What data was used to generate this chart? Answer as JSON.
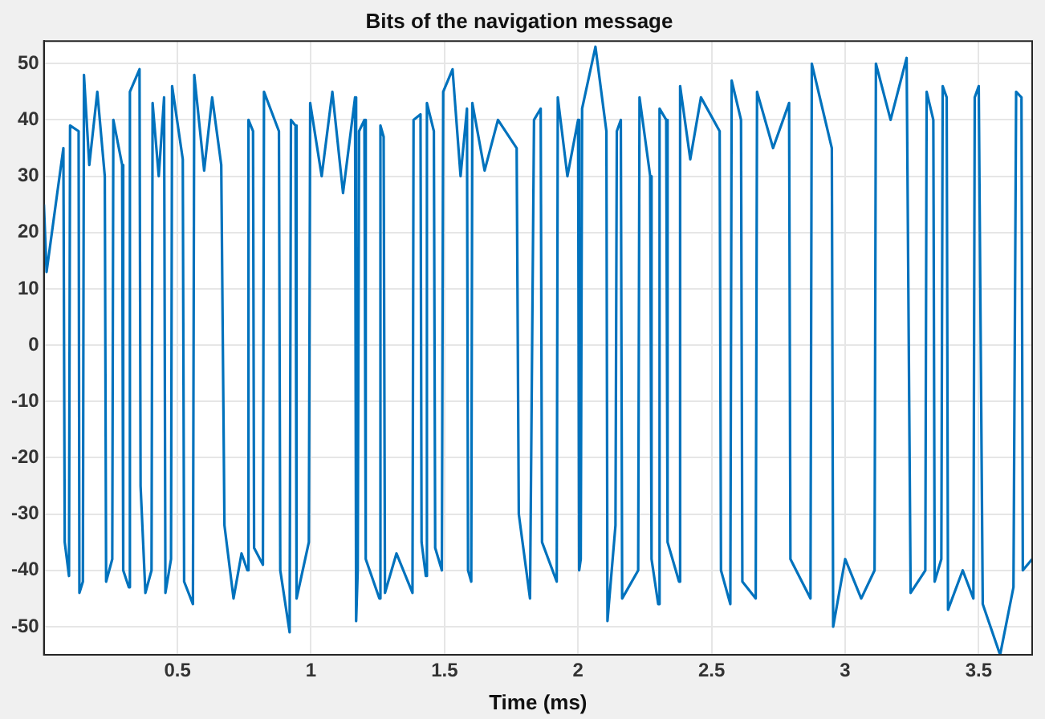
{
  "chart_data": {
    "type": "line",
    "title": "Bits of the navigation message",
    "xlabel": "Time (ms)",
    "grid": true,
    "legend": false,
    "marker": "none",
    "line_style": "solid",
    "xlim": [
      0,
      3.7
    ],
    "ylim": [
      -55,
      54
    ],
    "xticks": [
      0.5,
      1,
      1.5,
      2,
      2.5,
      3,
      3.5
    ],
    "yticks": [
      -50,
      -40,
      -30,
      -20,
      -10,
      0,
      10,
      20,
      30,
      40,
      50
    ],
    "series": [
      {
        "color": "#0072bd",
        "x": [
          0,
          0.01,
          0.03,
          0.05,
          0.073,
          0.078,
          0.094,
          0.098,
          0.13,
          0.133,
          0.146,
          0.15,
          0.17,
          0.2,
          0.228,
          0.233,
          0.256,
          0.26,
          0.293,
          0.297,
          0.318,
          0.322,
          0.358,
          0.362,
          0.38,
          0.403,
          0.407,
          0.43,
          0.45,
          0.455,
          0.476,
          0.48,
          0.52,
          0.525,
          0.558,
          0.563,
          0.6,
          0.63,
          0.664,
          0.676,
          0.71,
          0.74,
          0.762,
          0.766,
          0.783,
          0.787,
          0.82,
          0.824,
          0.88,
          0.885,
          0.92,
          0.925,
          0.942,
          0.946,
          0.992,
          0.997,
          1.04,
          1.08,
          1.12,
          1.165,
          1.169,
          1.175,
          1.18,
          1.2,
          1.205,
          1.256,
          1.26,
          1.272,
          1.277,
          1.32,
          1.38,
          1.384,
          1.41,
          1.414,
          1.43,
          1.434,
          1.46,
          1.465,
          1.49,
          1.495,
          1.53,
          1.56,
          1.584,
          1.588,
          1.6,
          1.604,
          1.65,
          1.7,
          1.77,
          1.778,
          1.82,
          1.835,
          1.86,
          1.865,
          1.92,
          1.924,
          1.96,
          2.0,
          2.004,
          2.01,
          2.015,
          2.065,
          2.106,
          2.11,
          2.14,
          2.145,
          2.16,
          2.165,
          2.225,
          2.23,
          2.27,
          2.275,
          2.3,
          2.305,
          2.33,
          2.335,
          2.378,
          2.382,
          2.42,
          2.46,
          2.53,
          2.535,
          2.57,
          2.575,
          2.61,
          2.615,
          2.665,
          2.67,
          2.73,
          2.79,
          2.795,
          2.87,
          2.875,
          2.95,
          2.955,
          3.0,
          3.06,
          3.11,
          3.115,
          3.17,
          3.23,
          3.245,
          3.3,
          3.305,
          3.33,
          3.335,
          3.36,
          3.365,
          3.38,
          3.385,
          3.44,
          3.48,
          3.485,
          3.5,
          3.515,
          3.58,
          3.63,
          3.64,
          3.66,
          3.665,
          3.7
        ],
        "values": [
          25,
          13,
          20,
          27,
          35,
          -35,
          -41,
          39,
          38,
          -44,
          -42,
          48,
          32,
          45,
          30,
          -42,
          -38,
          40,
          32,
          -40,
          -43,
          45,
          49,
          -25,
          -44,
          -40,
          43,
          30,
          44,
          -44,
          -38,
          46,
          33,
          -42,
          -46,
          48,
          31,
          44,
          32,
          -32,
          -45,
          -37,
          -40,
          40,
          38,
          -36,
          -39,
          45,
          38,
          -40,
          -51,
          40,
          39,
          -45,
          -35,
          43,
          30,
          45,
          27,
          44,
          -49,
          -40,
          38,
          40,
          -38,
          -45,
          39,
          37,
          -44,
          -37,
          -44,
          40,
          41,
          -35,
          -41,
          43,
          38,
          -36,
          -40,
          45,
          49,
          30,
          42,
          -40,
          -42,
          43,
          31,
          40,
          35,
          -30,
          -45,
          40,
          42,
          -35,
          -42,
          44,
          30,
          40,
          -40,
          -38,
          42,
          53,
          38,
          -49,
          -32,
          38,
          40,
          -45,
          -40,
          44,
          30,
          -38,
          -46,
          42,
          40,
          -35,
          -42,
          46,
          33,
          44,
          38,
          -40,
          -46,
          47,
          40,
          -42,
          -45,
          45,
          35,
          43,
          -38,
          -45,
          50,
          35,
          -50,
          -38,
          -45,
          -40,
          50,
          40,
          51,
          -44,
          -40,
          45,
          40,
          -42,
          -38,
          46,
          44,
          -47,
          -40,
          -45,
          44,
          46,
          -46,
          -55,
          -43,
          45,
          44,
          -40,
          -38
        ]
      }
    ]
  }
}
